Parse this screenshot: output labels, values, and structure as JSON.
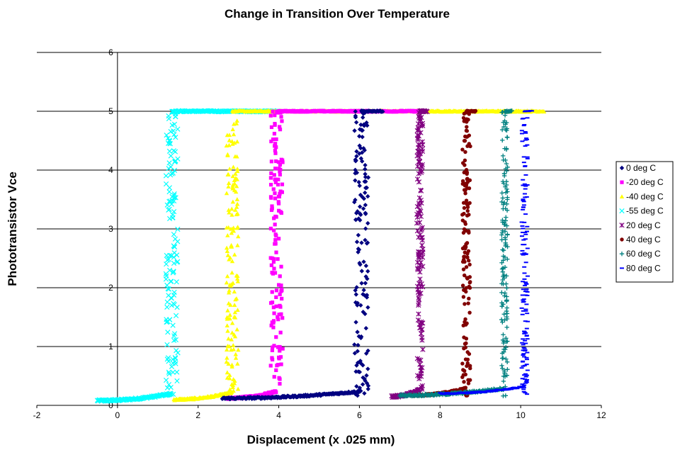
{
  "chart_data": {
    "type": "scatter",
    "title": "Change in Transition Over Temperature",
    "xlabel": "Displacement (x .025 mm)",
    "ylabel": "Phototransistor Vce",
    "xlim": [
      -2,
      12
    ],
    "ylim": [
      0,
      6
    ],
    "xticks": [
      -2,
      0,
      2,
      4,
      6,
      8,
      10,
      12
    ],
    "yticks": [
      0,
      1,
      2,
      3,
      4,
      5,
      6
    ],
    "grid": "horizontal",
    "legend": "right",
    "series": [
      {
        "name": "0 deg C",
        "color": "#000080",
        "marker": "diamond",
        "x_start": 2.6,
        "x_transition": 6.05,
        "x_end": 6.6,
        "v_low": 0.12,
        "v_high": 5.0,
        "spread": 0.35
      },
      {
        "name": "-20 deg C",
        "color": "#ff00ff",
        "marker": "square",
        "x_start": 2.7,
        "x_transition": 3.95,
        "x_end": 7.6,
        "v_low": 0.12,
        "v_high": 5.0,
        "spread": 0.3
      },
      {
        "name": "-40 deg C",
        "color": "#ffff00",
        "marker": "triangle",
        "x_start": 1.4,
        "x_transition": 2.85,
        "x_end": 10.6,
        "v_low": 0.1,
        "v_high": 5.0,
        "spread": 0.3
      },
      {
        "name": "-55 deg C",
        "color": "#00ffff",
        "marker": "x",
        "x_start": -0.5,
        "x_transition": 1.35,
        "x_end": 4.0,
        "v_low": 0.08,
        "v_high": 5.0,
        "spread": 0.3
      },
      {
        "name": "20 deg C",
        "color": "#800080",
        "marker": "star",
        "x_start": 6.8,
        "x_transition": 7.5,
        "x_end": 7.7,
        "v_low": 0.15,
        "v_high": 5.0,
        "spread": 0.15
      },
      {
        "name": "40 deg C",
        "color": "#800000",
        "marker": "circle",
        "x_start": 7.3,
        "x_transition": 8.65,
        "x_end": 8.9,
        "v_low": 0.17,
        "v_high": 5.0,
        "spread": 0.2
      },
      {
        "name": "60 deg C",
        "color": "#008080",
        "marker": "plus",
        "x_start": 7.0,
        "x_transition": 9.6,
        "x_end": 9.8,
        "v_low": 0.17,
        "v_high": 5.0,
        "spread": 0.15
      },
      {
        "name": "80 deg C",
        "color": "#0000ff",
        "marker": "dash",
        "x_start": 8.0,
        "x_transition": 10.1,
        "x_end": 10.3,
        "v_low": 0.2,
        "v_high": 5.0,
        "spread": 0.15
      }
    ]
  }
}
